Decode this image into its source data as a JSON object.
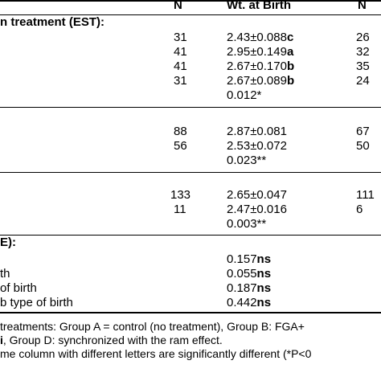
{
  "headers": {
    "n1": "N",
    "wt": "Wt. at Birth",
    "n2": "N"
  },
  "section1": {
    "title": "n treatment (EST):",
    "rows": [
      {
        "n": "31",
        "wt": "2.43±0.088",
        "letter": "c",
        "n2": "26"
      },
      {
        "n": "41",
        "wt": "2.95±0.149",
        "letter": "a",
        "n2": "32"
      },
      {
        "n": "41",
        "wt": "2.67±0.170",
        "letter": "b",
        "n2": "35"
      },
      {
        "n": "31",
        "wt": "2.67±0.089",
        "letter": "b",
        "n2": "24"
      }
    ],
    "p": "0.012*"
  },
  "section2": {
    "rows": [
      {
        "n": "88",
        "wt": "2.87±0.081",
        "n2": "67"
      },
      {
        "n": "56",
        "wt": "2.53±0.072",
        "n2": "50"
      }
    ],
    "p": "0.023**"
  },
  "section3": {
    "rows": [
      {
        "n": "133",
        "wt": "2.65±0.047",
        "n2": "111"
      },
      {
        "n": "11",
        "wt": "2.47±0.016",
        "n2": "6"
      }
    ],
    "p": "0.003**"
  },
  "section4": {
    "title": "E):",
    "rows": [
      {
        "label": "",
        "value": "0.157",
        "flag": "ns"
      },
      {
        "label": "th",
        "value": "0.055",
        "flag": "ns"
      },
      {
        "label": "of birth",
        "value": "0.187",
        "flag": "ns"
      },
      {
        "label": "b type of birth",
        "value": "0.442",
        "flag": "ns"
      }
    ]
  },
  "footnotes": {
    "line1": "treatments: Group A = control (no treatment), Group B: FGA+",
    "line2_bold": "i",
    "line2": ", Group D: synchronized with the ram effect.",
    "line3": "me column with different letters are significantly different (*P<0"
  }
}
